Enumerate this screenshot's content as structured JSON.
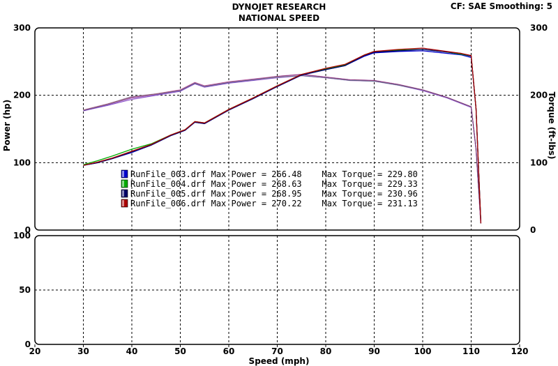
{
  "header": {
    "title_line1": "DYNOJET RESEARCH",
    "title_line2": "NATIONAL SPEED",
    "settings": "CF: SAE  Smoothing: 5"
  },
  "colors": {
    "run3": "#0000cc",
    "run4": "#00aa00",
    "run5": "#000066",
    "run6": "#aa0000",
    "torque_tint": "#c080d0",
    "grid": "#000000"
  },
  "chart_data": [
    {
      "type": "line",
      "name": "power-torque",
      "xlabel": "Speed (mph)",
      "ylabel": "Power (hp)",
      "ylabel_right": "Torque (ft-lbs)",
      "xlim": [
        20,
        120
      ],
      "ylim": [
        0,
        300
      ],
      "xticks": [
        "20",
        "30",
        "40",
        "50",
        "60",
        "70",
        "80",
        "90",
        "100",
        "110",
        "120"
      ],
      "yticks_left": [
        "0",
        "100",
        "200",
        "300"
      ],
      "yticks_right": [
        "0",
        "100",
        "200",
        "300"
      ],
      "grid": true,
      "power_series": [
        {
          "run": "run3",
          "x": [
            30,
            33,
            36,
            40,
            44,
            48,
            51,
            53,
            55,
            60,
            65,
            70,
            75,
            80,
            84,
            88,
            90,
            95,
            100,
            104,
            108,
            110,
            111,
            112
          ],
          "y": [
            96,
            100,
            106,
            115,
            126,
            140,
            148,
            160,
            158,
            178,
            195,
            213,
            230,
            238,
            244,
            258,
            263,
            265,
            266,
            263,
            260,
            256,
            180,
            10
          ]
        },
        {
          "run": "run4",
          "x": [
            30,
            33,
            36,
            40,
            44,
            48,
            51,
            53,
            55,
            60,
            65,
            70,
            75,
            80,
            84,
            88,
            90,
            95,
            100,
            104,
            108,
            110,
            111,
            112
          ],
          "y": [
            97,
            103,
            110,
            120,
            128,
            141,
            149,
            161,
            159,
            179,
            196,
            214,
            231,
            239,
            245,
            260,
            265,
            267,
            268,
            265,
            261,
            258,
            180,
            10
          ]
        },
        {
          "run": "run5",
          "x": [
            30,
            33,
            36,
            40,
            44,
            48,
            51,
            53,
            55,
            60,
            65,
            70,
            75,
            80,
            84,
            88,
            90,
            95,
            100,
            104,
            108,
            110,
            111,
            112
          ],
          "y": [
            96,
            100,
            106,
            116,
            126,
            140,
            148,
            160,
            158,
            178,
            195,
            213,
            230,
            238,
            244,
            259,
            264,
            266,
            268,
            265,
            262,
            258,
            180,
            10
          ]
        },
        {
          "run": "run6",
          "x": [
            30,
            33,
            36,
            40,
            44,
            48,
            51,
            53,
            55,
            60,
            65,
            70,
            75,
            80,
            84,
            88,
            90,
            95,
            100,
            104,
            108,
            110,
            111,
            112
          ],
          "y": [
            96,
            101,
            107,
            117,
            127,
            141,
            149,
            161,
            159,
            179,
            196,
            214,
            231,
            240,
            246,
            260,
            265,
            268,
            270,
            266,
            262,
            259,
            180,
            10
          ]
        }
      ],
      "torque_series": [
        {
          "run": "run3",
          "x": [
            30,
            35,
            40,
            45,
            50,
            53,
            55,
            60,
            65,
            70,
            75,
            80,
            85,
            90,
            95,
            100,
            105,
            110,
            111,
            112
          ],
          "y": [
            177,
            185,
            194,
            200,
            206,
            217,
            212,
            218,
            222,
            226,
            229,
            226,
            222,
            221,
            215,
            207,
            196,
            182,
            120,
            10
          ]
        },
        {
          "run": "run4",
          "x": [
            30,
            35,
            40,
            45,
            50,
            53,
            55,
            60,
            65,
            70,
            75,
            80,
            85,
            90,
            95,
            100,
            105,
            110,
            111,
            112
          ],
          "y": [
            178,
            187,
            198,
            202,
            207,
            218,
            213,
            219,
            223,
            227,
            229,
            226,
            222,
            221,
            215,
            208,
            197,
            183,
            120,
            10
          ]
        },
        {
          "run": "run5",
          "x": [
            30,
            35,
            40,
            45,
            50,
            53,
            55,
            60,
            65,
            70,
            75,
            80,
            85,
            90,
            95,
            100,
            105,
            110,
            111,
            112
          ],
          "y": [
            177,
            186,
            196,
            201,
            207,
            218,
            213,
            219,
            223,
            228,
            231,
            227,
            223,
            222,
            216,
            208,
            197,
            183,
            120,
            10
          ]
        },
        {
          "run": "run6",
          "x": [
            30,
            35,
            40,
            45,
            50,
            53,
            55,
            60,
            65,
            70,
            75,
            80,
            85,
            90,
            95,
            100,
            105,
            110,
            111,
            112
          ],
          "y": [
            178,
            187,
            197,
            202,
            208,
            219,
            214,
            220,
            224,
            228,
            231,
            227,
            223,
            222,
            216,
            208,
            197,
            183,
            120,
            10
          ]
        }
      ],
      "legend": [
        {
          "run": "run3",
          "text": "RunFile_003.drf Max Power = 266.48    Max Torque = 229.80"
        },
        {
          "run": "run4",
          "text": "RunFile_004.drf Max Power = 268.63    Max Torque = 229.33"
        },
        {
          "run": "run5",
          "text": "RunFile_005.drf Max Power = 268.95    Max Torque = 230.96"
        },
        {
          "run": "run6",
          "text": "RunFile_006.drf Max Power = 270.22    Max Torque = 231.13"
        }
      ]
    },
    {
      "type": "line",
      "name": "lower-panel",
      "xlim": [
        20,
        120
      ],
      "ylim": [
        0,
        100
      ],
      "yticks_left": [
        "0",
        "50",
        "100"
      ],
      "grid": true
    }
  ]
}
